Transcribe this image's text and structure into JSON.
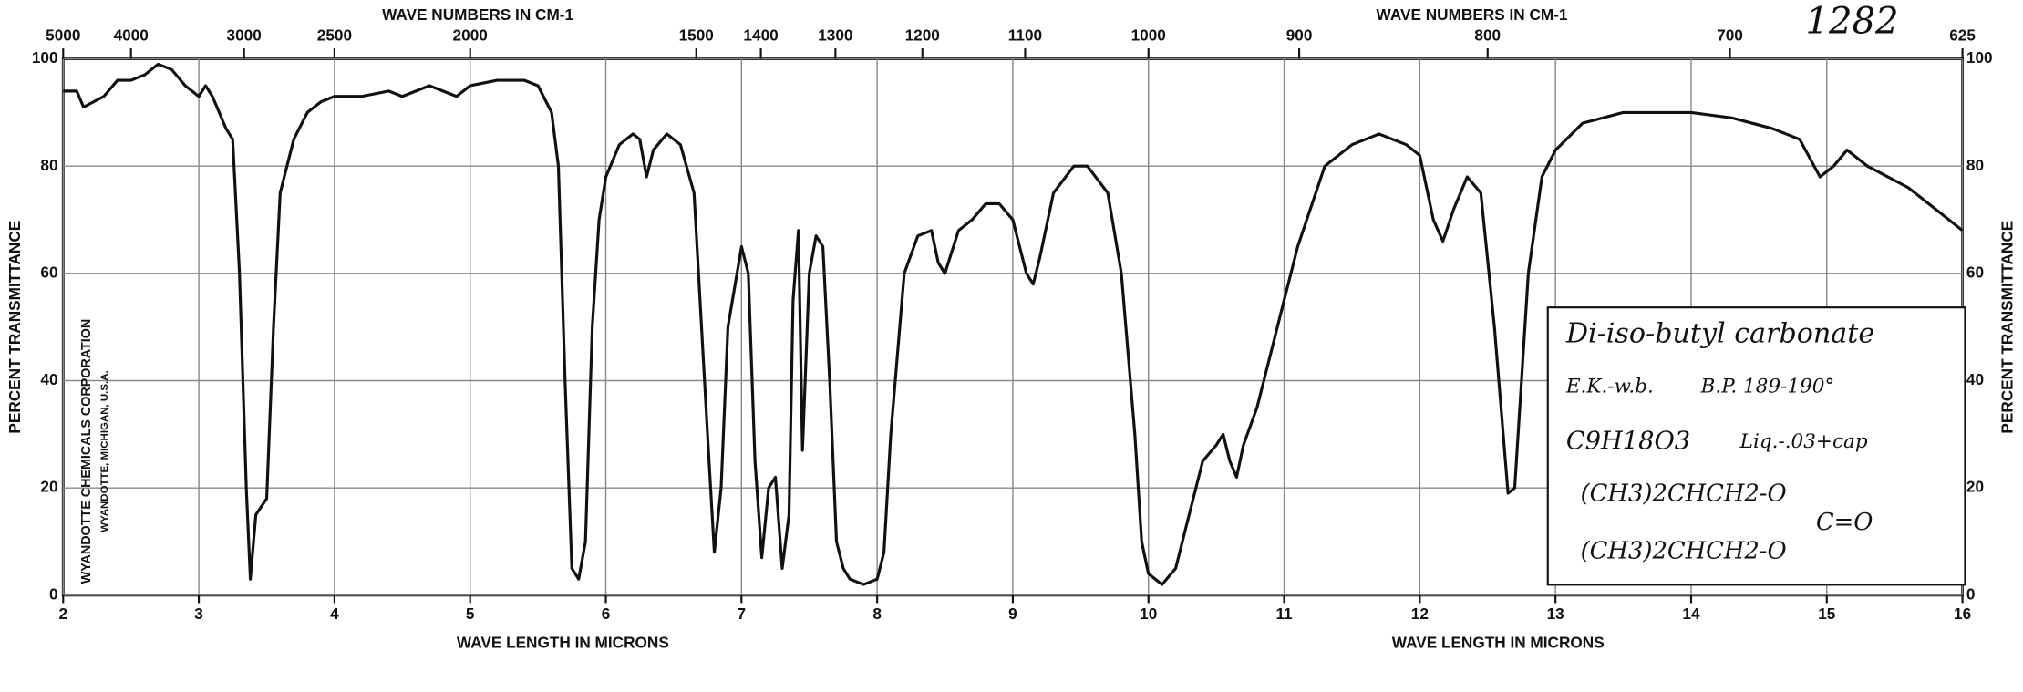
{
  "chart_data": {
    "type": "line",
    "x_label": "WAVE LENGTH IN MICRONS",
    "x2_label": "WAVE NUMBERS IN CM-1",
    "y_label": "PERCENT TRANSMITTANCE",
    "xlim": [
      2,
      16
    ],
    "xticks": [
      2,
      3,
      4,
      5,
      6,
      7,
      8,
      9,
      10,
      11,
      12,
      13,
      14,
      15,
      16
    ],
    "x2ticks": [
      5000,
      4000,
      3000,
      2500,
      2000,
      1500,
      1400,
      1300,
      1200,
      1100,
      1000,
      900,
      800,
      700,
      625
    ],
    "ylim": [
      0,
      100
    ],
    "yticks": [
      0,
      20,
      40,
      60,
      80,
      100
    ],
    "grid": true,
    "color": "#111111",
    "x": [
      2.0,
      2.1,
      2.15,
      2.3,
      2.4,
      2.5,
      2.6,
      2.7,
      2.8,
      2.9,
      3.0,
      3.05,
      3.1,
      3.2,
      3.25,
      3.3,
      3.35,
      3.38,
      3.42,
      3.5,
      3.55,
      3.6,
      3.7,
      3.8,
      3.9,
      4.0,
      4.2,
      4.4,
      4.5,
      4.7,
      4.8,
      4.9,
      5.0,
      5.2,
      5.4,
      5.5,
      5.6,
      5.65,
      5.7,
      5.75,
      5.8,
      5.85,
      5.9,
      5.95,
      6.0,
      6.1,
      6.2,
      6.25,
      6.3,
      6.35,
      6.45,
      6.55,
      6.65,
      6.75,
      6.8,
      6.85,
      6.9,
      7.0,
      7.05,
      7.1,
      7.15,
      7.2,
      7.25,
      7.3,
      7.35,
      7.38,
      7.42,
      7.45,
      7.5,
      7.55,
      7.6,
      7.65,
      7.7,
      7.75,
      7.8,
      7.9,
      8.0,
      8.05,
      8.1,
      8.2,
      8.3,
      8.4,
      8.45,
      8.5,
      8.55,
      8.6,
      8.7,
      8.8,
      8.9,
      9.0,
      9.05,
      9.1,
      9.15,
      9.2,
      9.3,
      9.45,
      9.55,
      9.7,
      9.8,
      9.9,
      9.95,
      10.0,
      10.1,
      10.2,
      10.3,
      10.4,
      10.5,
      10.55,
      10.6,
      10.65,
      10.7,
      10.8,
      10.9,
      11.0,
      11.1,
      11.3,
      11.5,
      11.7,
      11.9,
      12.0,
      12.1,
      12.17,
      12.25,
      12.35,
      12.45,
      12.55,
      12.65,
      12.7,
      12.8,
      12.9,
      13.0,
      13.2,
      13.5,
      14.0,
      14.3,
      14.6,
      14.8,
      14.95,
      15.05,
      15.15,
      15.3,
      15.6,
      15.8,
      16.0
    ],
    "values": [
      94,
      94,
      91,
      93,
      96,
      96,
      97,
      99,
      98,
      95,
      93,
      95,
      93,
      87,
      85,
      60,
      20,
      3,
      15,
      18,
      50,
      75,
      85,
      90,
      92,
      93,
      93,
      94,
      93,
      95,
      94,
      93,
      95,
      96,
      96,
      95,
      90,
      80,
      40,
      5,
      3,
      10,
      50,
      70,
      78,
      84,
      86,
      85,
      78,
      83,
      86,
      84,
      75,
      30,
      8,
      20,
      50,
      65,
      60,
      25,
      7,
      20,
      22,
      5,
      15,
      55,
      68,
      27,
      60,
      67,
      65,
      40,
      10,
      5,
      3,
      2,
      3,
      8,
      30,
      60,
      67,
      68,
      62,
      60,
      64,
      68,
      70,
      73,
      73,
      70,
      65,
      60,
      58,
      63,
      75,
      80,
      80,
      75,
      60,
      30,
      10,
      4,
      2,
      5,
      15,
      25,
      28,
      30,
      25,
      22,
      28,
      35,
      45,
      55,
      65,
      80,
      84,
      86,
      84,
      82,
      70,
      66,
      72,
      78,
      75,
      50,
      19,
      20,
      60,
      78,
      83,
      88,
      90,
      90,
      89,
      87,
      85,
      78,
      80,
      83,
      80,
      76,
      72,
      68
    ],
    "annotations": [
      "1282",
      "Di-iso-butyl carbonate",
      "E.K.-w.b.",
      "B.P. 189-190°",
      "C9H18O3",
      "Liq.-.03+cap",
      "(CH3)2CHCH2-O",
      "C=O",
      "(CH3)2CHCH2-O",
      "WYANDOTTE CHEMICALS CORPORATION",
      "WYANDOTTE, MICHIGAN, U.S.A."
    ]
  }
}
